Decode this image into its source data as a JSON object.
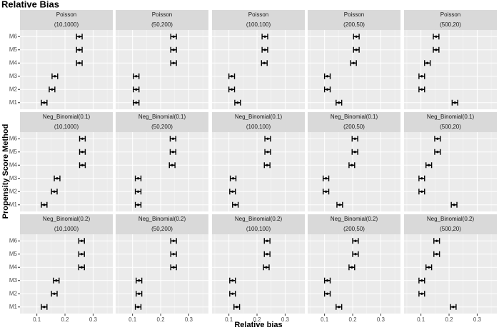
{
  "title": "Relative Bias",
  "xlabel": "Relative bias",
  "ylabel": "Propensity Score Method",
  "chart_data": [
    {
      "type": "errorbar",
      "strip_title": "Poisson",
      "strip_subtitle": "(10,1000)",
      "categories": [
        "M1",
        "M2",
        "M3",
        "M4",
        "M5",
        "M6"
      ],
      "values": [
        0.126,
        0.154,
        0.164,
        0.251,
        0.251,
        0.251
      ],
      "errors": [
        0.01,
        0.01,
        0.01,
        0.01,
        0.01,
        0.01
      ],
      "xlim": [
        0.04,
        0.37
      ],
      "xticks": [
        0.1,
        0.2,
        0.3
      ],
      "color": "#000000",
      "grid": true
    },
    {
      "type": "errorbar",
      "strip_title": "Poisson",
      "strip_subtitle": "(50,200)",
      "categories": [
        "M1",
        "M2",
        "M3",
        "M4",
        "M5",
        "M6"
      ],
      "values": [
        0.113,
        0.113,
        0.113,
        0.246,
        0.246,
        0.246
      ],
      "errors": [
        0.01,
        0.01,
        0.01,
        0.01,
        0.01,
        0.01
      ],
      "xlim": [
        0.04,
        0.37
      ],
      "xticks": [
        0.1,
        0.2,
        0.3
      ],
      "color": "#000000",
      "grid": true
    },
    {
      "type": "errorbar",
      "strip_title": "Poisson",
      "strip_subtitle": "(100,100)",
      "categories": [
        "M1",
        "M2",
        "M3",
        "M4",
        "M5",
        "M6"
      ],
      "values": [
        0.131,
        0.11,
        0.11,
        0.226,
        0.228,
        0.228
      ],
      "errors": [
        0.01,
        0.01,
        0.01,
        0.01,
        0.01,
        0.01
      ],
      "xlim": [
        0.04,
        0.37
      ],
      "xticks": [
        0.1,
        0.2,
        0.3
      ],
      "color": "#000000",
      "grid": true
    },
    {
      "type": "errorbar",
      "strip_title": "Poisson",
      "strip_subtitle": "(200,50)",
      "categories": [
        "M1",
        "M2",
        "M3",
        "M4",
        "M5",
        "M6"
      ],
      "values": [
        0.151,
        0.11,
        0.11,
        0.203,
        0.213,
        0.213
      ],
      "errors": [
        0.01,
        0.01,
        0.01,
        0.01,
        0.01,
        0.01
      ],
      "xlim": [
        0.04,
        0.37
      ],
      "xticks": [
        0.1,
        0.2,
        0.3
      ],
      "color": "#000000",
      "grid": true
    },
    {
      "type": "errorbar",
      "strip_title": "Poisson",
      "strip_subtitle": "(500,20)",
      "categories": [
        "M1",
        "M2",
        "M3",
        "M4",
        "M5",
        "M6"
      ],
      "values": [
        0.221,
        0.103,
        0.103,
        0.123,
        0.154,
        0.154
      ],
      "errors": [
        0.01,
        0.01,
        0.01,
        0.01,
        0.01,
        0.01
      ],
      "xlim": [
        0.04,
        0.37
      ],
      "xticks": [
        0.1,
        0.2,
        0.3
      ],
      "color": "#000000",
      "grid": true
    },
    {
      "type": "errorbar",
      "strip_title": "Neg_Binomial(0.1)",
      "strip_subtitle": "(10,1000)",
      "categories": [
        "M1",
        "M2",
        "M3",
        "M4",
        "M5",
        "M6"
      ],
      "values": [
        0.126,
        0.162,
        0.172,
        0.262,
        0.262,
        0.262
      ],
      "errors": [
        0.01,
        0.01,
        0.01,
        0.01,
        0.01,
        0.01
      ],
      "xlim": [
        0.04,
        0.37
      ],
      "xticks": [
        0.1,
        0.2,
        0.3
      ],
      "color": "#000000",
      "grid": true
    },
    {
      "type": "errorbar",
      "strip_title": "Neg_Binomial(0.1)",
      "strip_subtitle": "(50,200)",
      "categories": [
        "M1",
        "M2",
        "M3",
        "M4",
        "M5",
        "M6"
      ],
      "values": [
        0.12,
        0.12,
        0.12,
        0.241,
        0.244,
        0.244
      ],
      "errors": [
        0.01,
        0.01,
        0.01,
        0.01,
        0.01,
        0.01
      ],
      "xlim": [
        0.04,
        0.37
      ],
      "xticks": [
        0.1,
        0.2,
        0.3
      ],
      "color": "#000000",
      "grid": true
    },
    {
      "type": "errorbar",
      "strip_title": "Neg_Binomial(0.1)",
      "strip_subtitle": "(100,100)",
      "categories": [
        "M1",
        "M2",
        "M3",
        "M4",
        "M5",
        "M6"
      ],
      "values": [
        0.123,
        0.113,
        0.115,
        0.236,
        0.238,
        0.238
      ],
      "errors": [
        0.01,
        0.01,
        0.01,
        0.01,
        0.01,
        0.01
      ],
      "xlim": [
        0.04,
        0.37
      ],
      "xticks": [
        0.1,
        0.2,
        0.3
      ],
      "color": "#000000",
      "grid": true
    },
    {
      "type": "errorbar",
      "strip_title": "Neg_Binomial(0.1)",
      "strip_subtitle": "(200,50)",
      "categories": [
        "M1",
        "M2",
        "M3",
        "M4",
        "M5",
        "M6"
      ],
      "values": [
        0.154,
        0.105,
        0.105,
        0.197,
        0.208,
        0.208
      ],
      "errors": [
        0.01,
        0.01,
        0.01,
        0.01,
        0.01,
        0.01
      ],
      "xlim": [
        0.04,
        0.37
      ],
      "xticks": [
        0.1,
        0.2,
        0.3
      ],
      "color": "#000000",
      "grid": true
    },
    {
      "type": "errorbar",
      "strip_title": "Neg_Binomial(0.1)",
      "strip_subtitle": "(500,20)",
      "categories": [
        "M1",
        "M2",
        "M3",
        "M4",
        "M5",
        "M6"
      ],
      "values": [
        0.218,
        0.103,
        0.103,
        0.128,
        0.159,
        0.159
      ],
      "errors": [
        0.01,
        0.01,
        0.01,
        0.01,
        0.01,
        0.01
      ],
      "xlim": [
        0.04,
        0.37
      ],
      "xticks": [
        0.1,
        0.2,
        0.3
      ],
      "color": "#000000",
      "grid": true
    },
    {
      "type": "errorbar",
      "strip_title": "Neg_Binomial(0.2)",
      "strip_subtitle": "(10,1000)",
      "categories": [
        "M1",
        "M2",
        "M3",
        "M4",
        "M5",
        "M6"
      ],
      "values": [
        0.126,
        0.162,
        0.169,
        0.259,
        0.259,
        0.259
      ],
      "errors": [
        0.01,
        0.01,
        0.01,
        0.01,
        0.01,
        0.01
      ],
      "xlim": [
        0.04,
        0.37
      ],
      "xticks": [
        0.1,
        0.2,
        0.3
      ],
      "color": "#000000",
      "grid": true
    },
    {
      "type": "errorbar",
      "strip_title": "Neg_Binomial(0.2)",
      "strip_subtitle": "(50,200)",
      "categories": [
        "M1",
        "M2",
        "M3",
        "M4",
        "M5",
        "M6"
      ],
      "values": [
        0.12,
        0.123,
        0.123,
        0.246,
        0.246,
        0.246
      ],
      "errors": [
        0.01,
        0.01,
        0.01,
        0.01,
        0.01,
        0.01
      ],
      "xlim": [
        0.04,
        0.37
      ],
      "xticks": [
        0.1,
        0.2,
        0.3
      ],
      "color": "#000000",
      "grid": true
    },
    {
      "type": "errorbar",
      "strip_title": "Neg_Binomial(0.2)",
      "strip_subtitle": "(100,100)",
      "categories": [
        "M1",
        "M2",
        "M3",
        "M4",
        "M5",
        "M6"
      ],
      "values": [
        0.128,
        0.113,
        0.113,
        0.233,
        0.236,
        0.236
      ],
      "errors": [
        0.01,
        0.01,
        0.01,
        0.01,
        0.01,
        0.01
      ],
      "xlim": [
        0.04,
        0.37
      ],
      "xticks": [
        0.1,
        0.2,
        0.3
      ],
      "color": "#000000",
      "grid": true
    },
    {
      "type": "errorbar",
      "strip_title": "Neg_Binomial(0.2)",
      "strip_subtitle": "(200,50)",
      "categories": [
        "M1",
        "M2",
        "M3",
        "M4",
        "M5",
        "M6"
      ],
      "values": [
        0.151,
        0.11,
        0.11,
        0.197,
        0.21,
        0.21
      ],
      "errors": [
        0.01,
        0.01,
        0.01,
        0.01,
        0.01,
        0.01
      ],
      "xlim": [
        0.04,
        0.37
      ],
      "xticks": [
        0.1,
        0.2,
        0.3
      ],
      "color": "#000000",
      "grid": true
    },
    {
      "type": "errorbar",
      "strip_title": "Neg_Binomial(0.2)",
      "strip_subtitle": "(500,20)",
      "categories": [
        "M1",
        "M2",
        "M3",
        "M4",
        "M5",
        "M6"
      ],
      "values": [
        0.215,
        0.103,
        0.103,
        0.128,
        0.156,
        0.156
      ],
      "errors": [
        0.01,
        0.01,
        0.01,
        0.01,
        0.01,
        0.01
      ],
      "xlim": [
        0.04,
        0.37
      ],
      "xticks": [
        0.1,
        0.2,
        0.3
      ],
      "color": "#000000",
      "grid": true
    }
  ]
}
